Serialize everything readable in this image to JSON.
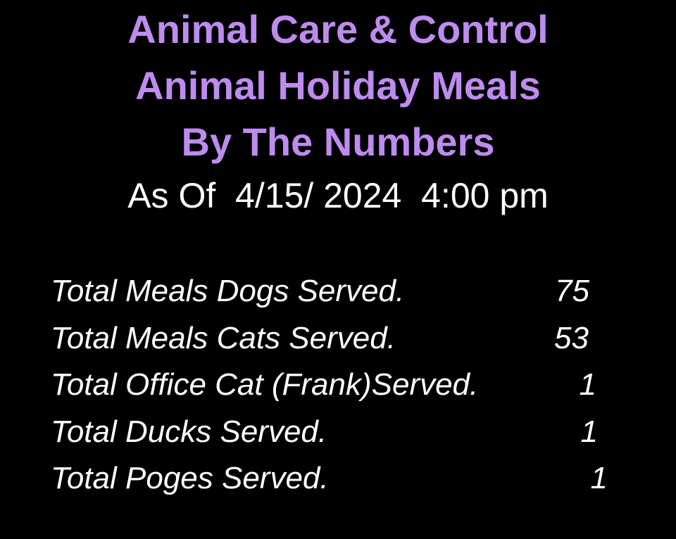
{
  "poster": {
    "colors": {
      "background": "#000000",
      "heading": "#bd8cee",
      "body_text": "#ffffff"
    },
    "header": {
      "lines": [
        "Animal Care & Control",
        "Animal Holiday Meals",
        "By The Numbers"
      ],
      "as_of": "As Of  4/15/ 2024  4:00 pm"
    },
    "stats": {
      "rows": [
        {
          "label": "Total Meals Dogs Served.",
          "value": "75"
        },
        {
          "label": "Total Meals Cats Served.",
          "value": "53"
        },
        {
          "label": "Total Office Cat (Frank)Served.",
          "value": "1"
        },
        {
          "label": "Total Ducks Served.",
          "value": "1"
        },
        {
          "label": "Total Poges Served.",
          "value": "1"
        }
      ]
    }
  }
}
